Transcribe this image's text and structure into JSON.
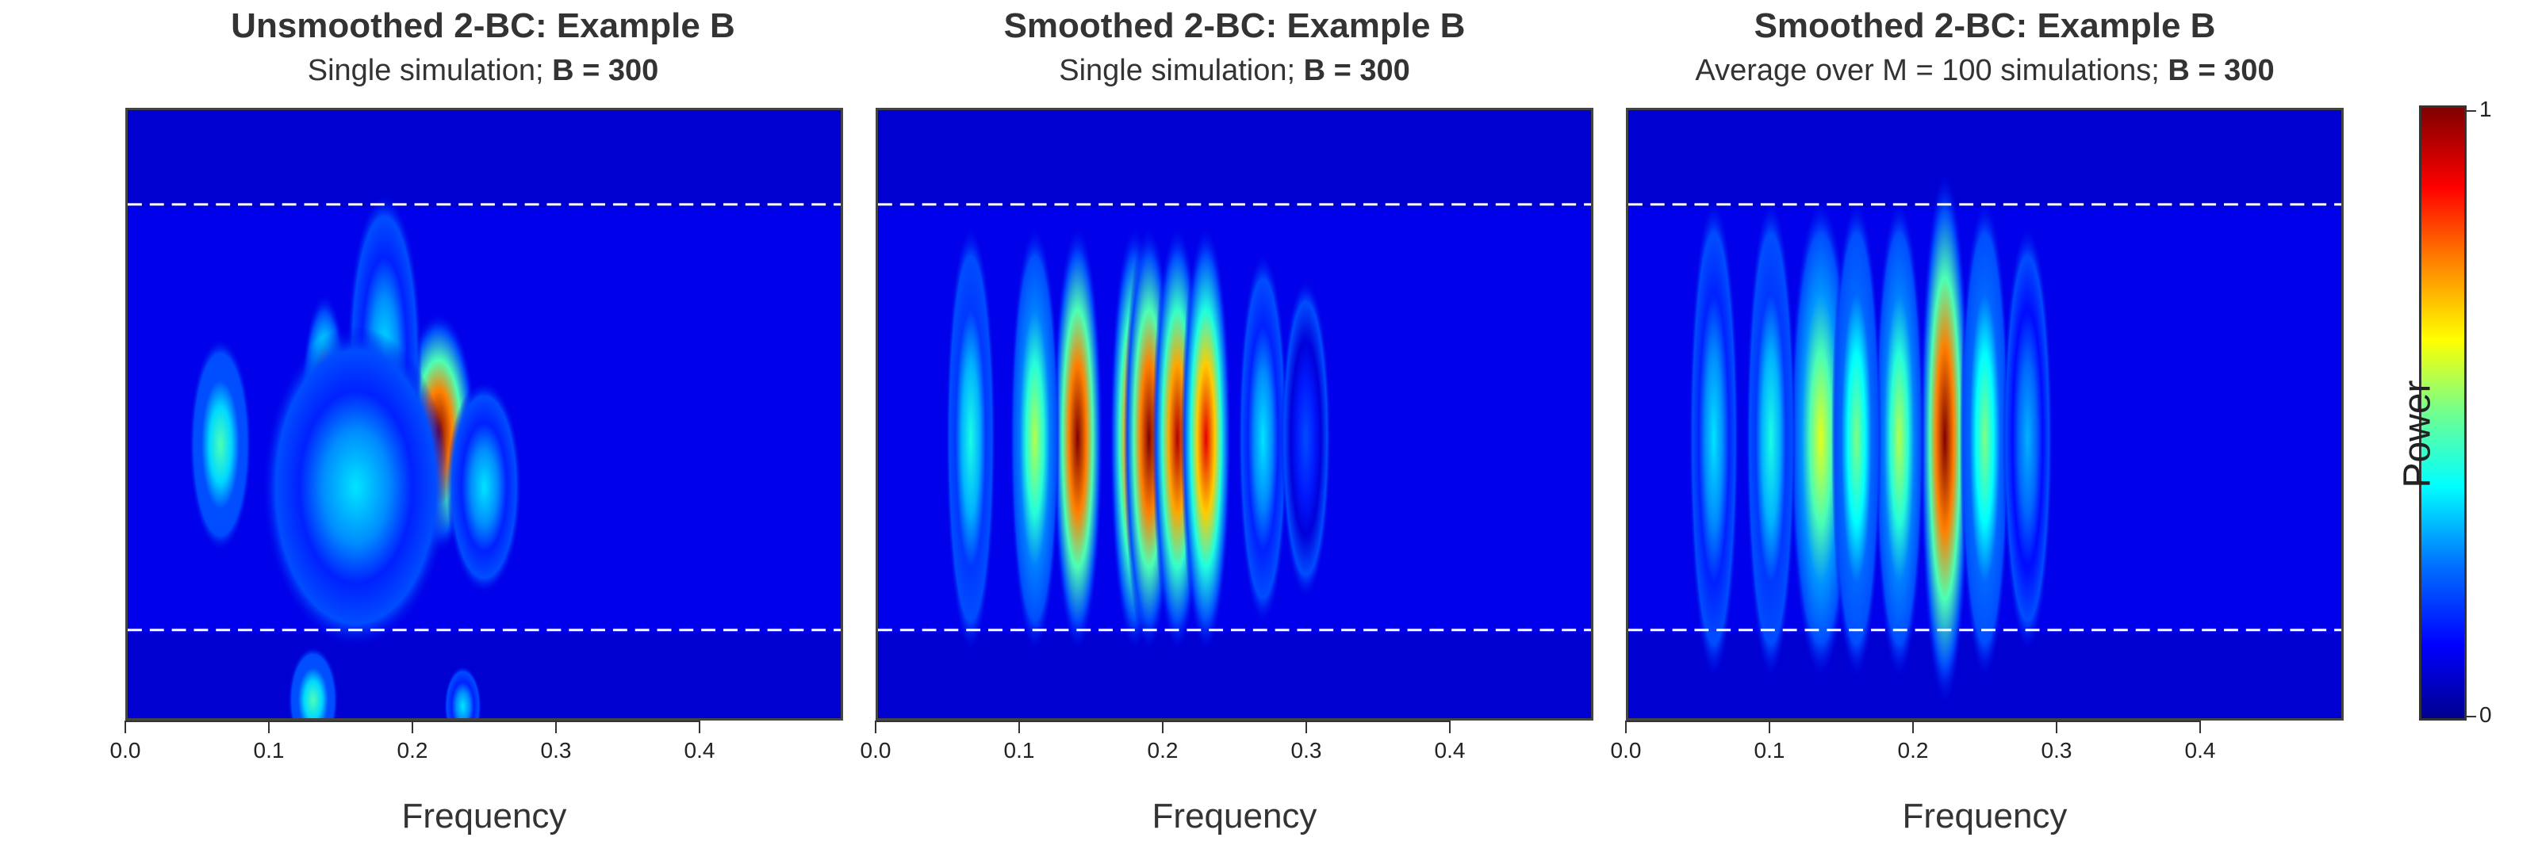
{
  "panels": [
    {
      "title": "Unsmoothed 2-BC: Example B",
      "subtitle_prefix": "Single simulation; ",
      "subtitle_bold": "B = 300",
      "xlabel": "Frequency",
      "blobs": [
        {
          "f": 0.138,
          "y": 0.52,
          "rx": 0.008,
          "ry": 0.1,
          "p": 0.78
        },
        {
          "f": 0.218,
          "y": 0.53,
          "rx": 0.012,
          "ry": 0.09,
          "p": 1.0
        },
        {
          "f": 0.065,
          "y": 0.55,
          "rx": 0.01,
          "ry": 0.08,
          "p": 0.45
        },
        {
          "f": 0.18,
          "y": 0.4,
          "rx": 0.012,
          "ry": 0.12,
          "p": 0.35
        },
        {
          "f": 0.16,
          "y": 0.62,
          "rx": 0.03,
          "ry": 0.12,
          "p": 0.35
        },
        {
          "f": 0.25,
          "y": 0.62,
          "rx": 0.012,
          "ry": 0.08,
          "p": 0.35
        },
        {
          "f": 0.13,
          "y": 0.97,
          "rx": 0.008,
          "ry": 0.04,
          "p": 0.45
        },
        {
          "f": 0.235,
          "y": 0.98,
          "rx": 0.006,
          "ry": 0.03,
          "p": 0.35
        }
      ]
    },
    {
      "title": "Smoothed 2-BC: Example B",
      "subtitle_prefix": "Single simulation; ",
      "subtitle_bold": "B = 300",
      "xlabel": "Frequency",
      "blobs": [
        {
          "f": 0.14,
          "y": 0.54,
          "rx": 0.008,
          "ry": 0.16,
          "p": 1.0
        },
        {
          "f": 0.18,
          "y": 0.54,
          "rx": 0.008,
          "ry": 0.16,
          "p": 0.95
        },
        {
          "f": 0.19,
          "y": 0.54,
          "rx": 0.008,
          "ry": 0.16,
          "p": 1.0
        },
        {
          "f": 0.21,
          "y": 0.54,
          "rx": 0.008,
          "ry": 0.16,
          "p": 0.95
        },
        {
          "f": 0.23,
          "y": 0.54,
          "rx": 0.008,
          "ry": 0.16,
          "p": 0.9
        },
        {
          "f": 0.11,
          "y": 0.54,
          "rx": 0.008,
          "ry": 0.16,
          "p": 0.55
        },
        {
          "f": 0.065,
          "y": 0.54,
          "rx": 0.008,
          "ry": 0.16,
          "p": 0.4
        },
        {
          "f": 0.27,
          "y": 0.54,
          "rx": 0.008,
          "ry": 0.14,
          "p": 0.35
        },
        {
          "f": 0.3,
          "y": 0.54,
          "rx": 0.008,
          "ry": 0.12,
          "p": 0.2
        }
      ]
    },
    {
      "title": "Smoothed 2-BC: Example B",
      "subtitle_prefix": "Average over M = 100 simulations; ",
      "subtitle_bold": "B = 300",
      "xlabel": "Frequency",
      "blobs": [
        {
          "f": 0.222,
          "y": 0.54,
          "rx": 0.008,
          "ry": 0.2,
          "p": 1.0
        },
        {
          "f": 0.135,
          "y": 0.54,
          "rx": 0.01,
          "ry": 0.18,
          "p": 0.6
        },
        {
          "f": 0.19,
          "y": 0.54,
          "rx": 0.008,
          "ry": 0.18,
          "p": 0.55
        },
        {
          "f": 0.25,
          "y": 0.54,
          "rx": 0.008,
          "ry": 0.18,
          "p": 0.5
        },
        {
          "f": 0.06,
          "y": 0.54,
          "rx": 0.008,
          "ry": 0.18,
          "p": 0.35
        },
        {
          "f": 0.1,
          "y": 0.54,
          "rx": 0.008,
          "ry": 0.18,
          "p": 0.4
        },
        {
          "f": 0.16,
          "y": 0.54,
          "rx": 0.008,
          "ry": 0.18,
          "p": 0.5
        },
        {
          "f": 0.28,
          "y": 0.54,
          "rx": 0.008,
          "ry": 0.16,
          "p": 0.3
        }
      ]
    }
  ],
  "chart_data": {
    "type": "heatmap",
    "x_label": "Frequency",
    "x_ticks": [
      "0.0",
      "0.1",
      "0.2",
      "0.3",
      "0.4"
    ],
    "x_range": [
      0.0,
      0.5
    ],
    "dashed_lines": "two horizontal dashed white lines",
    "colorbar": {
      "label": "Power",
      "ticks": [
        "0",
        "1"
      ],
      "range": [
        0,
        1
      ],
      "colormap": "jet"
    },
    "panels": [
      {
        "title": "Unsmoothed 2-BC: Example B",
        "subtitle": "Single simulation; B = 300",
        "peak_frequency": 0.22
      },
      {
        "title": "Smoothed 2-BC: Example B",
        "subtitle": "Single simulation; B = 300",
        "peak_frequencies": [
          0.14,
          0.19,
          0.23
        ]
      },
      {
        "title": "Smoothed 2-BC: Example B",
        "subtitle": "Average over M = 100 simulations; B = 300",
        "peak_frequency": 0.222
      }
    ]
  },
  "colorbar": {
    "label": "Power",
    "max_label": "1",
    "min_label": "0"
  }
}
